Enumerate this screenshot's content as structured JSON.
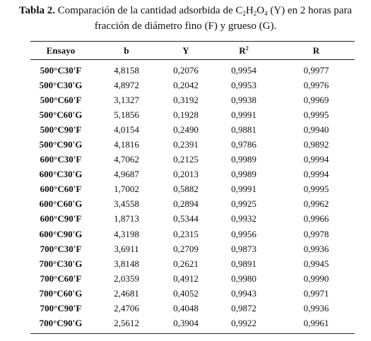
{
  "header": {
    "label": "Tabla 2.",
    "text_parts": [
      " Comparación de la cantidad adsorbida de C",
      "2",
      "H",
      "2",
      "O",
      "4",
      " (Y) en 2 horas para fracción de diámetro fino (F) y grueso (G)."
    ]
  },
  "table": {
    "headers": [
      "Ensayo",
      "b",
      "Y",
      {
        "text": "R",
        "sup": "2"
      },
      "R"
    ],
    "rows": [
      [
        "500°C30'F",
        "4,8158",
        "0,2076",
        "0,9954",
        "0,9977"
      ],
      [
        "500°C30'G",
        "4,8972",
        "0,2042",
        "0,9953",
        "0,9976"
      ],
      [
        "500°C60'F",
        "3,1327",
        "0,3192",
        "0,9938",
        "0,9969"
      ],
      [
        "500°C60'G",
        "5,1856",
        "0,1928",
        "0,9991",
        "0,9995"
      ],
      [
        "500°C90'F",
        "4,0154",
        "0,2490",
        "0,9881",
        "0,9940"
      ],
      [
        "500°C90'G",
        "4,1816",
        "0,2391",
        "0,9786",
        "0,9892"
      ],
      [
        "600°C30'F",
        "4,7062",
        "0,2125",
        "0,9989",
        "0,9994"
      ],
      [
        "600°C30'G",
        "4,9687",
        "0,2013",
        "0,9989",
        "0,9994"
      ],
      [
        "600°C60'F",
        "1,7002",
        "0,5882",
        "0,9991",
        "0,9995"
      ],
      [
        "600°C60'G",
        "3,4558",
        "0,2894",
        "0,9925",
        "0,9962"
      ],
      [
        "600°C90'F",
        "1,8713",
        "0,5344",
        "0,9932",
        "0,9966"
      ],
      [
        "600°C90'G",
        "4,3198",
        "0,2315",
        "0,9956",
        "0,9978"
      ],
      [
        "700°C30'F",
        "3,6911",
        "0,2709",
        "0,9873",
        "0,9936"
      ],
      [
        "700°C30'G",
        "3,8148",
        "0,2621",
        "0,9891",
        "0,9945"
      ],
      [
        "700°C60'F",
        "2,0359",
        "0,4912",
        "0,9980",
        "0,9990"
      ],
      [
        "700°C60'G",
        "2,4681",
        "0,4052",
        "0,9943",
        "0,9971"
      ],
      [
        "700°C90'F",
        "2,4706",
        "0,4048",
        "0,9872",
        "0,9936"
      ],
      [
        "700°C90'G",
        "2,5612",
        "0,3904",
        "0,9922",
        "0,9961"
      ]
    ]
  }
}
